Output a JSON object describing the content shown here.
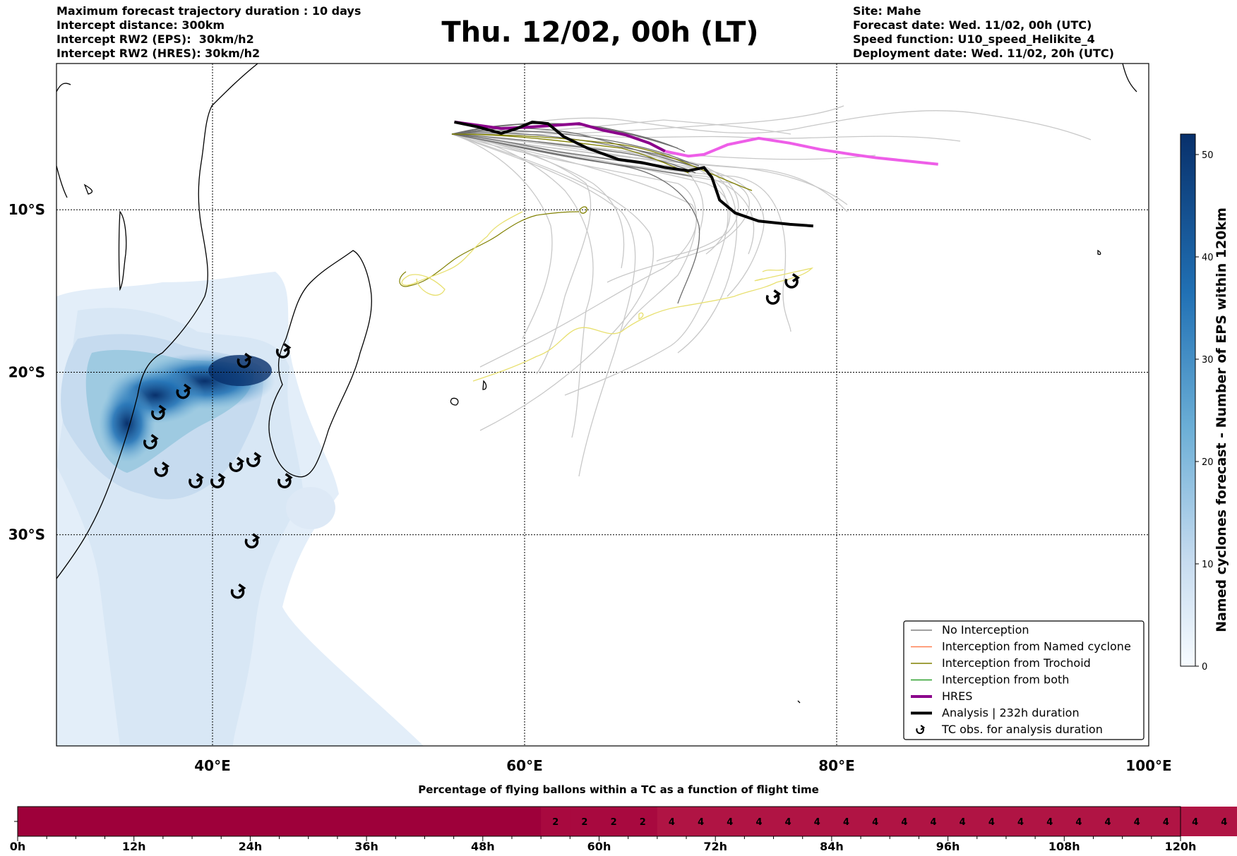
{
  "header_left": [
    "Maximum forecast trajectory duration : 10 days",
    "Intercept distance: 300km",
    "Intercept RW2 (EPS):  30km/h2",
    "Intercept RW2 (HRES): 30km/h2"
  ],
  "header_right": [
    "Site: Mahe",
    "Forecast date: Wed. 11/02, 00h (UTC)",
    "Speed function: U10_speed_Helikite_4",
    "Deployment date: Wed. 11/02, 20h (UTC)"
  ],
  "chart_data": [
    {
      "type": "map",
      "title": "Thu. 12/02, 00h (LT)",
      "x_ticks": [
        "40°E",
        "60°E",
        "80°E",
        "100°E"
      ],
      "y_ticks": [
        "10°S",
        "20°S",
        "30°S"
      ],
      "xlim": [
        30,
        100
      ],
      "ylim": [
        -43,
        -1
      ],
      "grid": true,
      "legend_position": "bottom-right",
      "legend": [
        {
          "label": "No Interception",
          "color": "#808080"
        },
        {
          "label": "Interception from Named cyclone",
          "color": "#ff7f50"
        },
        {
          "label": "Interception from Trochoid",
          "color": "#808000"
        },
        {
          "label": "Interception from both",
          "color": "#2ca02c"
        },
        {
          "label": "HRES",
          "color": "#8b008b"
        },
        {
          "label": "Analysis | 232h duration",
          "color": "#000000"
        },
        {
          "label": "TC obs. for analysis duration",
          "color": "#000000"
        }
      ],
      "colorbar": {
        "label": "Named cyclones forecast - Number of EPS within 120km",
        "ticks": [
          "0",
          "10",
          "20",
          "30",
          "40",
          "50"
        ],
        "range": [
          0,
          52
        ]
      },
      "analysis_track": [
        [
          55.5,
          -4.6
        ],
        [
          57,
          -4.9
        ],
        [
          58.5,
          -5.3
        ],
        [
          59.5,
          -5.0
        ],
        [
          60.5,
          -4.6
        ],
        [
          61.5,
          -4.7
        ],
        [
          62.5,
          -5.5
        ],
        [
          64,
          -6.2
        ],
        [
          66,
          -6.9
        ],
        [
          67.5,
          -7.1
        ],
        [
          69,
          -7.4
        ],
        [
          70.5,
          -7.6
        ],
        [
          71.5,
          -7.4
        ],
        [
          72,
          -8.0
        ],
        [
          72.5,
          -9.4
        ],
        [
          73.5,
          -10.2
        ],
        [
          75,
          -10.7
        ],
        [
          77,
          -10.9
        ],
        [
          78.5,
          -11.0
        ]
      ],
      "hres_track": [
        [
          55.5,
          -4.6
        ],
        [
          57,
          -4.8
        ],
        [
          58.5,
          -5.0
        ],
        [
          60.5,
          -4.9
        ],
        [
          62,
          -4.8
        ],
        [
          63.5,
          -4.7
        ],
        [
          65,
          -5.1
        ],
        [
          66.5,
          -5.4
        ],
        [
          68,
          -5.9
        ],
        [
          69,
          -6.4
        ]
      ],
      "hres_track_extension": [
        [
          69,
          -6.4
        ],
        [
          70.5,
          -6.7
        ],
        [
          71.5,
          -6.6
        ],
        [
          73,
          -6.0
        ],
        [
          75,
          -5.6
        ],
        [
          77,
          -5.9
        ],
        [
          79,
          -6.3
        ],
        [
          81,
          -6.6
        ],
        [
          82.5,
          -6.8
        ],
        [
          84.5,
          -7.0
        ],
        [
          86.5,
          -7.2
        ]
      ],
      "tc_observations": [
        [
          42,
          -19.3
        ],
        [
          44.5,
          -18.7
        ],
        [
          38.1,
          -21.2
        ],
        [
          36.5,
          -22.5
        ],
        [
          36,
          -24.3
        ],
        [
          36.7,
          -26
        ],
        [
          38.9,
          -26.7
        ],
        [
          40.3,
          -26.7
        ],
        [
          41.5,
          -25.7
        ],
        [
          42.6,
          -25.4
        ],
        [
          44.6,
          -26.7
        ],
        [
          42.5,
          -30.4
        ],
        [
          41.6,
          -33.5
        ],
        [
          75.9,
          -15.4
        ],
        [
          77.1,
          -14.4
        ]
      ]
    },
    {
      "type": "bar",
      "title": "Percentage of flying ballons within a TC as a function of flight time",
      "x_ticks": [
        "0h",
        "12h",
        "24h",
        "36h",
        "48h",
        "60h",
        "72h",
        "84h",
        "96h",
        "108h",
        "120h"
      ],
      "xlim": [
        0,
        120
      ],
      "step_hours": 3,
      "values": [
        0,
        0,
        0,
        0,
        0,
        0,
        0,
        0,
        0,
        0,
        0,
        0,
        0,
        0,
        0,
        0,
        0,
        0,
        2,
        2,
        2,
        2,
        4,
        4,
        4,
        4,
        4,
        4,
        4,
        4,
        4,
        4,
        4,
        4,
        4,
        4,
        4,
        4,
        4,
        4,
        4,
        4
      ]
    }
  ]
}
